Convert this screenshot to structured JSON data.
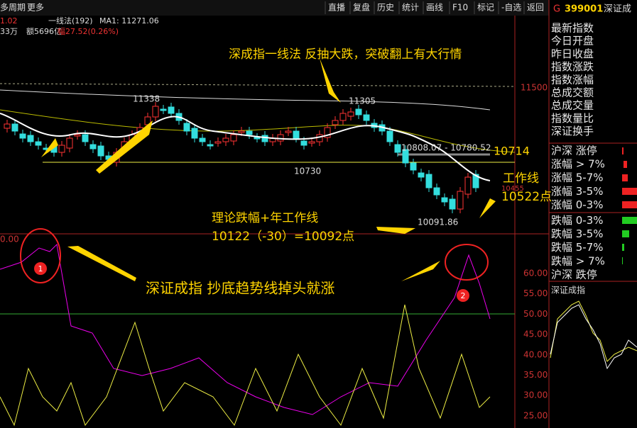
{
  "toolbar": {
    "left": [
      "多周期",
      "更多"
    ],
    "buttons": [
      "直播",
      "复盘",
      "历史",
      "统计",
      "画线",
      "F10",
      "标记",
      "-自选",
      "返回"
    ],
    "code_prefix": "G",
    "code": "399001",
    "name": "深证成"
  },
  "info": {
    "line1": [
      "1.02",
      "一线法(192)",
      "MA1: 11271.06"
    ],
    "line2": [
      "33万",
      "额5696亿",
      "幅27.52(0.26%)"
    ]
  },
  "main_chart": {
    "axis_label": "11500",
    "labels": [
      "11338",
      "11305",
      "10808.07 - 10780.52",
      "10714",
      "10730",
      "10455",
      "10091.86"
    ],
    "annotations": [
      "深成指一线法  反抽大跌，突破翻上有大行情",
      "工作线",
      "10522点",
      "理论跌幅+年工作线",
      "10122（-30）=10092点"
    ]
  },
  "indicator": {
    "top_label": "0.00",
    "yticks": [
      "60.00",
      "55.00",
      "50.00",
      "45.00",
      "40.00",
      "35.00",
      "30.00",
      "25.00"
    ],
    "annotation": "深证成指 抄底趋势线掉头就涨",
    "markers": [
      "1",
      "2"
    ]
  },
  "side_panel": {
    "fields": [
      "最新指数",
      "今日开盘",
      "昨日收盘",
      "指数涨跌",
      "指数涨幅",
      "总成交额",
      "总成交量",
      "指数量比",
      "深证换手"
    ],
    "breadth": [
      "沪深 涨停",
      "涨幅 > 7%",
      "涨幅 5-7%",
      "涨幅 3-5%",
      "涨幅 0-3%",
      "跌幅 0-3%",
      "跌幅 3-5%",
      "跌幅 5-7%",
      "跌幅 > 7%",
      "沪深 跌停"
    ],
    "mini_title": "深证成指"
  }
}
